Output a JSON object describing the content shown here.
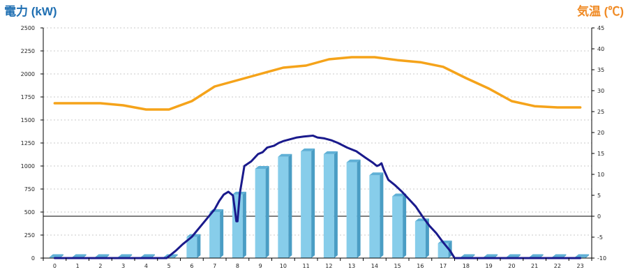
{
  "chart_data": {
    "type": "bar+line",
    "left_axis_label": "電力 (kW)",
    "right_axis_label": "気温 (℃)",
    "left_axis": {
      "min": 0,
      "max": 2500,
      "ticks": [
        0,
        250,
        500,
        750,
        1000,
        1250,
        1500,
        1750,
        2000,
        2250,
        2500
      ]
    },
    "right_axis": {
      "min": -10,
      "max": 45,
      "ticks": [
        -10,
        -5,
        0,
        5,
        10,
        15,
        20,
        25,
        30,
        35,
        40,
        45
      ]
    },
    "categories": [
      "0",
      "1",
      "2",
      "3",
      "4",
      "5",
      "6",
      "7",
      "8",
      "9",
      "10",
      "11",
      "12",
      "13",
      "14",
      "15",
      "16",
      "17",
      "18",
      "19",
      "20",
      "21",
      "22",
      "23"
    ],
    "grid": true,
    "colors": {
      "bar": "#87cdea",
      "bar_side": "#4a9dc4",
      "power_line": "#1a1a8c",
      "temp_line": "#f5a31a",
      "axis_label_left": "#1f6fb2",
      "axis_label_right": "#f08a24"
    },
    "bar_series": {
      "values": [
        0,
        0,
        0,
        0,
        0,
        0,
        230,
        500,
        690,
        970,
        1100,
        1160,
        1130,
        1040,
        900,
        670,
        400,
        160,
        0,
        0,
        0,
        0,
        0,
        0
      ]
    },
    "power_line": {
      "points": [
        [
          0,
          0
        ],
        [
          4.9,
          0
        ],
        [
          5.0,
          20
        ],
        [
          5.3,
          80
        ],
        [
          5.6,
          150
        ],
        [
          6.0,
          230
        ],
        [
          6.4,
          350
        ],
        [
          6.8,
          470
        ],
        [
          7.0,
          530
        ],
        [
          7.2,
          620
        ],
        [
          7.4,
          690
        ],
        [
          7.6,
          720
        ],
        [
          7.8,
          680
        ],
        [
          7.9,
          500
        ],
        [
          7.95,
          400
        ],
        [
          8.0,
          400
        ],
        [
          8.1,
          700
        ],
        [
          8.3,
          1000
        ],
        [
          8.6,
          1050
        ],
        [
          8.9,
          1130
        ],
        [
          9.1,
          1150
        ],
        [
          9.3,
          1200
        ],
        [
          9.6,
          1220
        ],
        [
          9.8,
          1250
        ],
        [
          10.0,
          1270
        ],
        [
          10.3,
          1290
        ],
        [
          10.6,
          1310
        ],
        [
          10.9,
          1320
        ],
        [
          11.1,
          1325
        ],
        [
          11.3,
          1330
        ],
        [
          11.5,
          1310
        ],
        [
          11.8,
          1300
        ],
        [
          12.1,
          1280
        ],
        [
          12.4,
          1250
        ],
        [
          12.8,
          1200
        ],
        [
          13.2,
          1160
        ],
        [
          13.6,
          1090
        ],
        [
          13.9,
          1040
        ],
        [
          14.1,
          1000
        ],
        [
          14.2,
          1010
        ],
        [
          14.3,
          1030
        ],
        [
          14.4,
          960
        ],
        [
          14.6,
          850
        ],
        [
          14.9,
          790
        ],
        [
          15.2,
          720
        ],
        [
          15.5,
          640
        ],
        [
          15.8,
          560
        ],
        [
          16.1,
          450
        ],
        [
          16.4,
          350
        ],
        [
          16.7,
          270
        ],
        [
          17.0,
          170
        ],
        [
          17.3,
          80
        ],
        [
          17.5,
          0
        ],
        [
          23,
          0
        ]
      ]
    },
    "temp_line": {
      "values": [
        27,
        27,
        27,
        26.5,
        25.5,
        25.5,
        27.5,
        31,
        32.5,
        34,
        35.5,
        36,
        37.5,
        38,
        38,
        37.3,
        36.8,
        35.7,
        33,
        30.5,
        27.5,
        26.3,
        26,
        26
      ]
    }
  }
}
